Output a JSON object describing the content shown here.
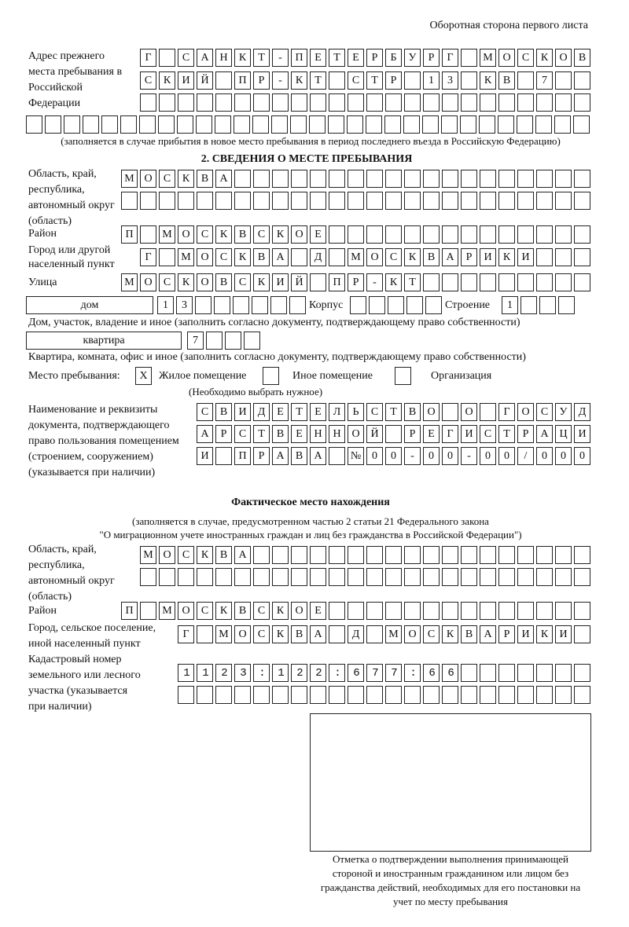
{
  "header": "Оборотная сторона первого листа",
  "prev_address": {
    "label": "Адрес прежнего места пребывания в Российской Федерации",
    "rows": [
      {
        "value": "Г САНКТ-ПЕТЕРБУРГ МОСКОВ",
        "cells": 24
      },
      {
        "value": "СКИЙ ПР-КТ СТР 13 КВ 7",
        "cells": 24
      },
      {
        "value": "",
        "cells": 24
      },
      {
        "value": "",
        "cells": 30
      }
    ],
    "note": "(заполняется в случае прибытия в новое место пребывания в период последнего въезда в Российскую Федерацию)"
  },
  "section2_title": "2. СВЕДЕНИЯ О МЕСТЕ ПРЕБЫВАНИЯ",
  "stay": {
    "region_label": "Область, край, республика, автономный округ (область)",
    "region_rows": [
      {
        "value": "МОСКВА",
        "cells": 25
      },
      {
        "value": "",
        "cells": 25
      }
    ],
    "district_label": "Район",
    "district": {
      "value": "П МОСКВСКОЕ",
      "cells": 25
    },
    "city_label": "Город или другой населенный пункт",
    "city": {
      "value": "Г МОСКВА Д МОСКВАРИКИ",
      "cells": 24
    },
    "street_label": "Улица",
    "street": {
      "value": "МОСКОВСКИЙ ПР-КТ",
      "cells": 25
    },
    "house_type": "дом",
    "house": {
      "value": "13",
      "cells": 8
    },
    "korpus_label": "Корпус",
    "korpus": {
      "value": "",
      "cells": 5
    },
    "building_label": "Строение",
    "building": {
      "value": "1",
      "cells": 4
    },
    "house_note": "Дом, участок, владение и иное (заполнить согласно документу, подтверждающему право собственности)",
    "apt_type": "квартира",
    "apt": {
      "value": "7",
      "cells": 4
    },
    "apt_note": "Квартира, комната, офис и иное (заполнить согласно документу, подтверждающему право собственности)",
    "place_label": "Место пребывания:",
    "place_options": [
      {
        "label": "Жилое помещение",
        "mark": "X"
      },
      {
        "label": "Иное помещение",
        "mark": ""
      },
      {
        "label": "Организация",
        "mark": ""
      }
    ],
    "place_note": "(Необходимо выбрать нужное)",
    "doc_label": "Наименование и реквизиты документа, подтверждающего право пользования помещением (строением, сооружением) (указывается при наличии)",
    "doc_rows": [
      {
        "value": "СВИДЕТЕЛЬСТВО О ГОСУД",
        "cells": 21
      },
      {
        "value": "АРСТВЕННОЙ РЕГИСТРАЦИ",
        "cells": 21
      },
      {
        "value": "И ПРАВА №00-00-00/000",
        "cells": 21
      }
    ]
  },
  "actual": {
    "title": "Фактическое место нахождения",
    "note1": "(заполняется в случае, предусмотренном частью 2 статьи 21 Федерального закона",
    "note2": "\"О миграционном учете иностранных граждан и лиц без гражданства в Российской Федерации\")",
    "region_label": "Область, край, республика, автономный округ (область)",
    "region_rows": [
      {
        "value": "МОСКВА",
        "cells": 24
      },
      {
        "value": "",
        "cells": 24
      }
    ],
    "district_label": "Район",
    "district": {
      "value": "П МОСКВСКОЕ",
      "cells": 25
    },
    "city_label": "Город, сельское поселение, иной населенный пункт",
    "city": {
      "value": "Г МОСКВА Д МОСКВАРИКИ",
      "cells": 22
    },
    "cadastre_label": "Кадастровый номер земельного или лесного участка (указывается при наличии)",
    "cadastre_rows": [
      {
        "value": "1123:122:677:66",
        "cells": 22
      },
      {
        "value": "",
        "cells": 22
      }
    ]
  },
  "stamp_caption": "Отметка о подтверждении выполнения принимающей стороной и иностранным гражданином или лицом без гражданства действий, необходимых для его постановки на учет по месту пребывания"
}
